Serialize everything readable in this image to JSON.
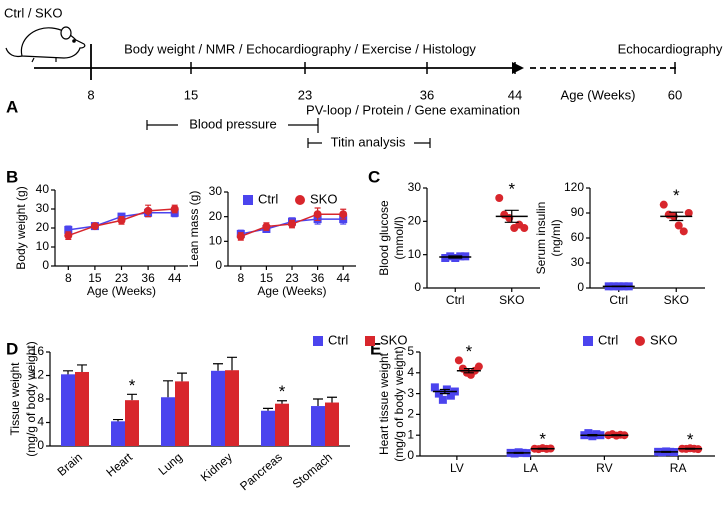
{
  "panel_labels": [
    "A",
    "B",
    "C",
    "D",
    "E"
  ],
  "timeline": {
    "subject": "Ctrl / SKO",
    "top_label": "Body weight / NMR / Echocardiography / Exercise / Histology",
    "weeks": [
      8,
      15,
      23,
      36,
      44,
      60
    ],
    "late_label": "Echocardiography",
    "lower_label": "PV-loop / Protein / Gene examination",
    "axis_label": "Age (Weeks)",
    "brackets": [
      "Blood pressure",
      "Titin analysis"
    ]
  },
  "chart_data": [
    {
      "type": "line",
      "ylabel": [
        "Body weight (g)"
      ],
      "xlabel": "Age (Weeks)",
      "categories": [
        "8",
        "15",
        "23",
        "36",
        "44"
      ],
      "ylim": [
        0,
        40
      ],
      "yticks": [
        0,
        10,
        20,
        30,
        40
      ],
      "series": [
        {
          "color": "#4b44ee",
          "marker": "square",
          "values": [
            19,
            21,
            26,
            28,
            28
          ],
          "errors": [
            2,
            1,
            1,
            2,
            2
          ]
        },
        {
          "color": "#d8262c",
          "marker": "circle",
          "values": [
            16,
            21,
            24,
            29,
            30
          ],
          "errors": [
            2,
            1,
            2,
            3,
            2
          ]
        }
      ],
      "legend": false
    },
    {
      "type": "line",
      "ylabel": [
        "Lean mass (g)"
      ],
      "xlabel": "Age (Weeks)",
      "categories": [
        "8",
        "15",
        "23",
        "36",
        "44"
      ],
      "ylim": [
        0,
        30
      ],
      "yticks": [
        0,
        10,
        20,
        30
      ],
      "series": [
        {
          "name": "Ctrl",
          "color": "#4b44ee",
          "marker": "square",
          "values": [
            13,
            15,
            18,
            19,
            19
          ],
          "errors": [
            1.5,
            1,
            1.5,
            2,
            2
          ]
        },
        {
          "name": "SKO",
          "color": "#d8262c",
          "marker": "circle",
          "values": [
            12,
            16,
            17,
            21,
            21
          ],
          "errors": [
            1.5,
            1.5,
            1.5,
            2.5,
            2
          ]
        }
      ],
      "legend": true
    },
    {
      "type": "strip",
      "ylabel": [
        "Blood glucose",
        "(mmol/l)"
      ],
      "categories": [
        "Ctrl",
        "SKO"
      ],
      "ylim": [
        0,
        30
      ],
      "yticks": [
        0,
        10,
        20,
        30
      ],
      "points": [
        [
          9,
          9.5,
          9,
          9.5,
          9.5
        ],
        [
          27,
          22,
          21,
          18,
          19,
          18
        ]
      ],
      "means": [
        9.3,
        21.5
      ],
      "errors": [
        0.3,
        1.8
      ],
      "colors": [
        "#4b44ee",
        "#d8262c"
      ],
      "markers": [
        "square",
        "circle"
      ],
      "annotations": [
        {
          "text": "*",
          "category": 1
        }
      ]
    },
    {
      "type": "strip",
      "ylabel": [
        "Serum insulin",
        "(ng/ml)"
      ],
      "categories": [
        "Ctrl",
        "SKO"
      ],
      "ylim": [
        0,
        120
      ],
      "yticks": [
        0,
        30,
        60,
        90,
        120
      ],
      "points": [
        [
          2,
          2,
          2,
          2,
          2
        ],
        [
          100,
          88,
          86,
          75,
          68,
          90
        ]
      ],
      "means": [
        2,
        86
      ],
      "errors": [
        0.3,
        5
      ],
      "colors": [
        "#4b44ee",
        "#d8262c"
      ],
      "markers": [
        "square",
        "circle"
      ],
      "annotations": [
        {
          "text": "*",
          "category": 1
        }
      ]
    },
    {
      "type": "bar",
      "ylabel": [
        "Tissue weight",
        "(mg/g of body weight)"
      ],
      "categories": [
        "Brain",
        "Heart",
        "Lung",
        "Kidney",
        "Pancreas",
        "Stomach"
      ],
      "ylim": [
        0,
        16
      ],
      "yticks": [
        0,
        4,
        8,
        12,
        16
      ],
      "series": [
        {
          "name": "Ctrl",
          "color": "#4b44ee",
          "marker": "square",
          "values": [
            12.2,
            4.2,
            8.3,
            12.8,
            6.0,
            6.8
          ],
          "errors": [
            0.6,
            0.3,
            2.8,
            1.2,
            0.4,
            1.2
          ]
        },
        {
          "name": "SKO",
          "color": "#d8262c",
          "marker": "square",
          "values": [
            12.6,
            7.8,
            11.0,
            12.9,
            7.2,
            7.4
          ],
          "errors": [
            1.2,
            1.0,
            1.4,
            2.2,
            0.5,
            0.9
          ]
        }
      ],
      "legend": true,
      "annotations": [
        {
          "text": "*",
          "category": 1,
          "series": 1
        },
        {
          "text": "*",
          "category": 4,
          "series": 1
        }
      ]
    },
    {
      "type": "stripgroup",
      "ylabel": [
        "Heart tissue weight",
        "(mg/g of body weight)"
      ],
      "categories": [
        "LV",
        "LA",
        "RV",
        "RA"
      ],
      "ylim": [
        0,
        5
      ],
      "yticks": [
        0,
        1,
        2,
        3,
        4,
        5
      ],
      "series": [
        {
          "name": "Ctrl",
          "color": "#4b44ee",
          "marker": "square",
          "points": [
            [
              3.3,
              3.0,
              2.7,
              3.2,
              2.9,
              3.1
            ],
            [
              0.15,
              0.12,
              0.18,
              0.15,
              0.14
            ],
            [
              1.0,
              1.1,
              0.95,
              1.05,
              1.0
            ],
            [
              0.2,
              0.18,
              0.22,
              0.2,
              0.19
            ]
          ],
          "means": [
            3.1,
            0.15,
            1.0,
            0.2
          ],
          "errors": [
            0.1,
            0.02,
            0.03,
            0.02
          ]
        },
        {
          "name": "SKO",
          "color": "#d8262c",
          "marker": "circle",
          "points": [
            [
              4.6,
              4.2,
              4.0,
              3.9,
              4.1,
              4.3
            ],
            [
              0.35,
              0.33,
              0.38,
              0.34,
              0.36
            ],
            [
              1.0,
              1.05,
              0.98,
              1.02,
              1.0
            ],
            [
              0.35,
              0.34,
              0.37,
              0.35,
              0.33
            ]
          ],
          "means": [
            4.1,
            0.35,
            1.0,
            0.35
          ],
          "errors": [
            0.1,
            0.02,
            0.02,
            0.02
          ]
        }
      ],
      "legend": true,
      "annotations": [
        {
          "text": "*",
          "category": 0,
          "series": 1
        },
        {
          "text": "*",
          "category": 1,
          "series": 1
        },
        {
          "text": "*",
          "category": 3,
          "series": 1
        }
      ]
    }
  ]
}
